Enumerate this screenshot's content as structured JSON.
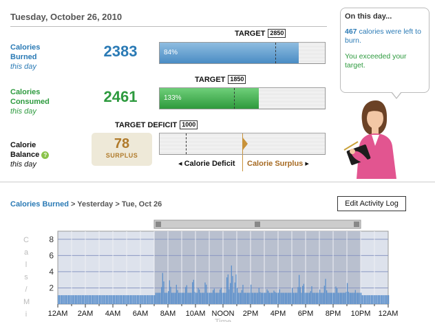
{
  "header": {
    "date": "Tuesday, October 26, 2010"
  },
  "burned": {
    "label1": "Calories",
    "label2": "Burned",
    "sub": "this day",
    "value": "2383",
    "target_label": "TARGET",
    "target": "2850",
    "percent_label": "84%",
    "fill_fraction": 0.84,
    "target_fraction": 0.7,
    "color": "#2a7ab5"
  },
  "consumed": {
    "label1": "Calories",
    "label2": "Consumed",
    "sub": "this day",
    "value": "2461",
    "target_label": "TARGET",
    "target": "1850",
    "percent_label": "133%",
    "fill_fraction": 0.6,
    "target_fraction": 0.45,
    "color": "#2d9a3e"
  },
  "balance": {
    "label1": "Calorie",
    "label2": "Balance",
    "sub": "this day",
    "value": "78",
    "word": "SURPLUS",
    "target_label": "TARGET DEFICIT",
    "target": "1000",
    "deficit_label": "Calorie Deficit",
    "surplus_label": "Calorie Surplus",
    "target_fraction": 0.16,
    "marker_fraction": 0.5,
    "help_icon": "question-icon"
  },
  "callout": {
    "title": "On this day...",
    "line1_num": "467",
    "line1_text": " calories were left to burn.",
    "line2": "You exceeded your target."
  },
  "section": {
    "crumb_link": "Calories Burned",
    "crumb_rest": " > Yesterday > Tue, Oct 26",
    "edit_button": "Edit Activity Log"
  },
  "chart_data": {
    "type": "bar",
    "ylabel": "Cals/Min",
    "xlabel": "Time",
    "ylim": [
      0,
      9
    ],
    "yticks": [
      "2",
      "4",
      "6",
      "8"
    ],
    "xticks": [
      "12AM",
      "2AM",
      "4AM",
      "6AM",
      "8AM",
      "10AM",
      "NOON",
      "2PM",
      "4PM",
      "6PM",
      "8PM",
      "10PM",
      "12AM"
    ],
    "selection_hours": [
      7,
      22
    ],
    "baseline": 1.1,
    "peaks": [
      {
        "hour": 7.6,
        "value": 4.2
      },
      {
        "hour": 8.1,
        "value": 3.2
      },
      {
        "hour": 8.6,
        "value": 2.6
      },
      {
        "hour": 9.3,
        "value": 2.8
      },
      {
        "hour": 9.8,
        "value": 3.6
      },
      {
        "hour": 10.2,
        "value": 2.4
      },
      {
        "hour": 10.7,
        "value": 3.2
      },
      {
        "hour": 11.3,
        "value": 2.3
      },
      {
        "hour": 11.8,
        "value": 2.4
      },
      {
        "hour": 12.3,
        "value": 4.4
      },
      {
        "hour": 12.6,
        "value": 5.2
      },
      {
        "hour": 12.9,
        "value": 4.0
      },
      {
        "hour": 13.4,
        "value": 2.6
      },
      {
        "hour": 14.0,
        "value": 2.4
      },
      {
        "hour": 14.6,
        "value": 2.2
      },
      {
        "hour": 15.2,
        "value": 2.2
      },
      {
        "hour": 15.7,
        "value": 2.0
      },
      {
        "hour": 16.1,
        "value": 2.0
      },
      {
        "hour": 17.0,
        "value": 2.0
      },
      {
        "hour": 17.5,
        "value": 3.6
      },
      {
        "hour": 17.8,
        "value": 3.0
      },
      {
        "hour": 18.4,
        "value": 2.4
      },
      {
        "hour": 19.0,
        "value": 1.8
      },
      {
        "hour": 19.4,
        "value": 3.4
      },
      {
        "hour": 20.2,
        "value": 2.6
      },
      {
        "hour": 21.0,
        "value": 2.6
      },
      {
        "hour": 21.6,
        "value": 1.9
      }
    ]
  }
}
